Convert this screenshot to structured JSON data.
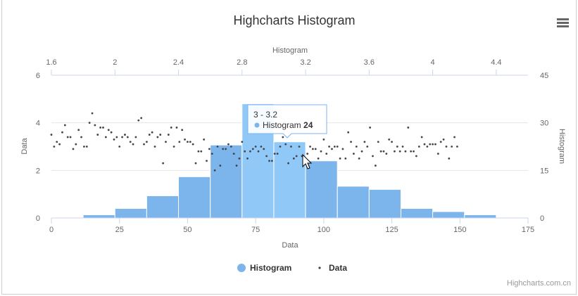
{
  "chart_data": {
    "type": "bar",
    "title": "Highcharts Histogram",
    "x_primary": {
      "title": "Data",
      "range": [
        0,
        175
      ],
      "ticks": [
        "0",
        "25",
        "50",
        "75",
        "100",
        "125",
        "150",
        "175"
      ]
    },
    "x_secondary": {
      "title": "Histogram",
      "range": [
        1.6,
        4.6
      ],
      "ticks": [
        "1.6",
        "2",
        "2.4",
        "2.8",
        "3.2",
        "3.6",
        "4",
        "4.4"
      ]
    },
    "y_primary": {
      "title": "Data",
      "range": [
        0,
        6
      ],
      "ticks": [
        "0",
        "2",
        "4",
        "6"
      ]
    },
    "y_secondary": {
      "title": "Histogram",
      "range": [
        0,
        45
      ],
      "ticks": [
        "0",
        "15",
        "30",
        "45"
      ]
    },
    "grid": true,
    "legend_position": "bottom",
    "series": [
      {
        "name": "Histogram",
        "color": "#7cb5ec",
        "bins": [
          {
            "x0": 1.8,
            "x1": 2.0,
            "value": 1
          },
          {
            "x0": 2.0,
            "x1": 2.2,
            "value": 3
          },
          {
            "x0": 2.2,
            "x1": 2.4,
            "value": 7
          },
          {
            "x0": 2.4,
            "x1": 2.6,
            "value": 13
          },
          {
            "x0": 2.6,
            "x1": 2.8,
            "value": 23
          },
          {
            "x0": 2.8,
            "x1": 3.0,
            "value": 36
          },
          {
            "x0": 3.0,
            "x1": 3.2,
            "value": 24
          },
          {
            "x0": 3.2,
            "x1": 3.4,
            "value": 18
          },
          {
            "x0": 3.4,
            "x1": 3.6,
            "value": 10
          },
          {
            "x0": 3.6,
            "x1": 3.8,
            "value": 9
          },
          {
            "x0": 3.8,
            "x1": 4.0,
            "value": 3
          },
          {
            "x0": 4.0,
            "x1": 4.2,
            "value": 2
          },
          {
            "x0": 4.2,
            "x1": 4.4,
            "value": 1
          }
        ]
      },
      {
        "name": "Data",
        "color": "#434348",
        "values": [
          3.5,
          3.0,
          3.2,
          3.1,
          3.6,
          3.9,
          3.4,
          3.4,
          2.9,
          3.1,
          3.7,
          3.4,
          3.0,
          3.0,
          4.0,
          4.4,
          3.9,
          3.5,
          3.8,
          3.8,
          3.4,
          3.7,
          3.6,
          3.3,
          3.4,
          3.0,
          3.4,
          3.5,
          3.4,
          3.2,
          3.1,
          3.4,
          4.1,
          4.2,
          3.1,
          3.2,
          3.5,
          3.6,
          3.0,
          3.4,
          3.5,
          2.3,
          3.2,
          3.5,
          3.8,
          3.0,
          3.8,
          3.2,
          3.7,
          3.3,
          3.2,
          3.2,
          3.1,
          2.3,
          2.8,
          2.8,
          3.3,
          2.4,
          2.9,
          2.7,
          2.0,
          3.0,
          2.2,
          2.9,
          2.9,
          3.1,
          3.0,
          2.7,
          2.2,
          2.5,
          3.2,
          2.8,
          2.5,
          2.8,
          2.9,
          3.0,
          2.8,
          3.0,
          2.9,
          2.6,
          2.4,
          2.4,
          2.7,
          2.7,
          3.0,
          3.4,
          3.1,
          2.3,
          3.0,
          2.5,
          2.6,
          3.0,
          2.6,
          2.3,
          2.7,
          3.0,
          2.9,
          2.9,
          2.5,
          2.8,
          3.3,
          2.7,
          3.0,
          2.9,
          3.0,
          3.0,
          2.5,
          2.9,
          2.5,
          3.6,
          3.2,
          2.7,
          3.0,
          2.5,
          2.8,
          3.2,
          3.0,
          3.8,
          2.6,
          2.2,
          3.2,
          2.8,
          2.8,
          2.7,
          3.3,
          3.2,
          2.8,
          3.0,
          2.8,
          3.0,
          2.8,
          3.8,
          2.8,
          2.8,
          2.6,
          3.0,
          3.4,
          3.1,
          3.0,
          3.1,
          3.1,
          3.1,
          2.7,
          3.2,
          3.3,
          3.0,
          2.5,
          3.0,
          3.4,
          3.0
        ]
      }
    ],
    "tooltip": {
      "range": "3 - 3.2",
      "series": "Histogram",
      "value": "24"
    }
  },
  "legend": {
    "items": [
      "Histogram",
      "Data"
    ]
  },
  "credits": "Highcharts.com.cn",
  "menu_icon": "hamburger-menu-icon"
}
